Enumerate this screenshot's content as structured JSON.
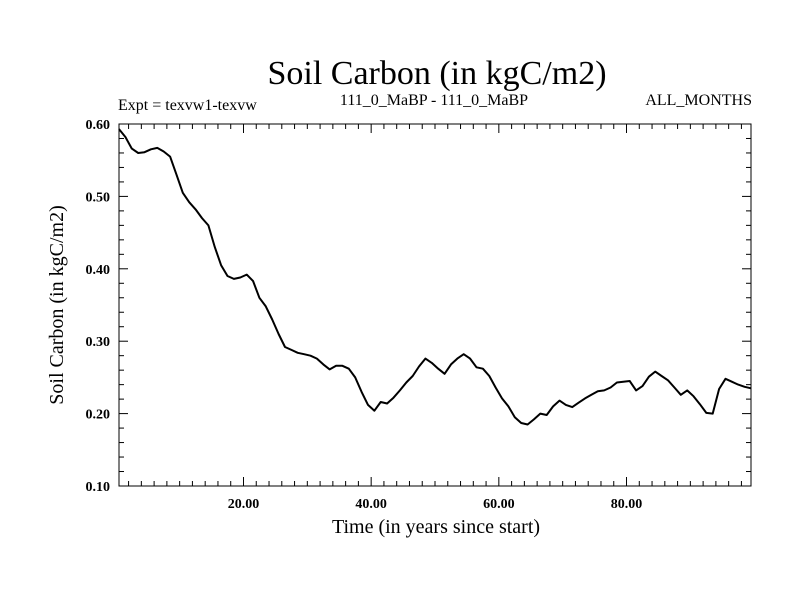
{
  "chart_data": {
    "type": "line",
    "title": "Soil Carbon (in kgC/m2)",
    "subtitle_left": "Expt = texvw1-texvw",
    "subtitle_center": "111_0_MaBP - 111_0_MaBP",
    "subtitle_right": "ALL_MONTHS",
    "xlabel": "Time (in years since start)",
    "ylabel": "Soil Carbon (in kgC/m2)",
    "xlim": [
      0.5,
      99.5
    ],
    "ylim": [
      0.1,
      0.6
    ],
    "x_ticks": [
      {
        "value": 20,
        "label": "20.00"
      },
      {
        "value": 40,
        "label": "40.00"
      },
      {
        "value": 60,
        "label": "60.00"
      },
      {
        "value": 80,
        "label": "80.00"
      }
    ],
    "y_ticks": [
      {
        "value": 0.1,
        "label": "0.10"
      },
      {
        "value": 0.2,
        "label": "0.20"
      },
      {
        "value": 0.3,
        "label": "0.30"
      },
      {
        "value": 0.4,
        "label": "0.40"
      },
      {
        "value": 0.5,
        "label": "0.50"
      },
      {
        "value": 0.6,
        "label": "0.60"
      }
    ],
    "x_minor_step": 2,
    "y_minor_step": 0.02,
    "grid": false,
    "series": [
      {
        "name": "Soil Carbon",
        "color": "#000000",
        "x": [
          0.5,
          1.5,
          2.5,
          3.5,
          4.5,
          5.5,
          6.5,
          7.5,
          8.5,
          9.5,
          10.5,
          11.5,
          12.5,
          13.5,
          14.5,
          15.5,
          16.5,
          17.5,
          18.5,
          19.5,
          20.5,
          21.5,
          22.5,
          23.5,
          24.5,
          25.5,
          26.5,
          27.5,
          28.5,
          29.5,
          30.5,
          31.5,
          32.5,
          33.5,
          34.5,
          35.5,
          36.5,
          37.5,
          38.5,
          39.5,
          40.5,
          41.5,
          42.5,
          43.5,
          44.5,
          45.5,
          46.5,
          47.5,
          48.5,
          49.5,
          50.5,
          51.5,
          52.5,
          53.5,
          54.5,
          55.5,
          56.5,
          57.5,
          58.5,
          59.5,
          60.5,
          61.5,
          62.5,
          63.5,
          64.5,
          65.5,
          66.5,
          67.5,
          68.5,
          69.5,
          70.5,
          71.5,
          72.5,
          73.5,
          74.5,
          75.5,
          76.5,
          77.5,
          78.5,
          79.5,
          80.5,
          81.5,
          82.5,
          83.5,
          84.5,
          85.5,
          86.5,
          87.5,
          88.5,
          89.5,
          90.5,
          91.5,
          92.5,
          93.5,
          94.5,
          95.5,
          96.5,
          97.5,
          98.5,
          99.5
        ],
        "values": [
          0.593,
          0.582,
          0.566,
          0.56,
          0.561,
          0.565,
          0.567,
          0.562,
          0.555,
          0.53,
          0.505,
          0.492,
          0.482,
          0.47,
          0.46,
          0.43,
          0.405,
          0.39,
          0.386,
          0.388,
          0.392,
          0.383,
          0.36,
          0.348,
          0.33,
          0.31,
          0.292,
          0.288,
          0.284,
          0.282,
          0.28,
          0.276,
          0.268,
          0.261,
          0.266,
          0.266,
          0.262,
          0.25,
          0.23,
          0.212,
          0.204,
          0.216,
          0.214,
          0.222,
          0.232,
          0.243,
          0.252,
          0.265,
          0.276,
          0.27,
          0.262,
          0.255,
          0.268,
          0.276,
          0.282,
          0.276,
          0.264,
          0.262,
          0.252,
          0.236,
          0.221,
          0.21,
          0.195,
          0.187,
          0.185,
          0.192,
          0.2,
          0.198,
          0.21,
          0.218,
          0.212,
          0.209,
          0.215,
          0.221,
          0.226,
          0.231,
          0.232,
          0.236,
          0.243,
          0.244,
          0.245,
          0.232,
          0.238,
          0.251,
          0.258,
          0.252,
          0.246,
          0.236,
          0.226,
          0.232,
          0.224,
          0.213,
          0.201,
          0.2,
          0.234,
          0.248,
          0.244,
          0.24,
          0.237,
          0.235
        ]
      }
    ]
  }
}
